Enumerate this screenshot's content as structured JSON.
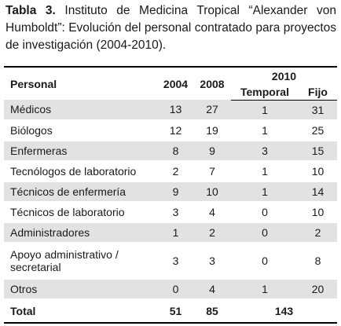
{
  "caption": {
    "label": "Tabla 3.",
    "text": "Instituto de Medicina Tropical “Alexander von Humboldt”: Evolución del personal contratado para proyectos de investigación (2004-2010)."
  },
  "table": {
    "header": {
      "personal": "Personal",
      "y2004": "2004",
      "y2008": "2008",
      "y2010": "2010",
      "temporal": "Temporal",
      "fijo": "Fijo"
    },
    "rows": [
      [
        "Médicos",
        13,
        27,
        1,
        31
      ],
      [
        "Biólogos",
        12,
        19,
        1,
        25
      ],
      [
        "Enfermeras",
        8,
        9,
        3,
        15
      ],
      [
        "Tecnólogos de laboratorio",
        2,
        7,
        1,
        10
      ],
      [
        "Técnicos de enfermería",
        9,
        10,
        1,
        14
      ],
      [
        "Técnicos de laboratorio",
        3,
        4,
        0,
        10
      ],
      [
        "Administradores",
        1,
        2,
        0,
        2
      ],
      [
        "Apoyo administrativo / secretarial",
        3,
        3,
        0,
        8
      ],
      [
        "Otros",
        0,
        4,
        1,
        20
      ]
    ],
    "total": {
      "label": "Total",
      "y2004": 51,
      "y2008": 85,
      "y2010": 143
    }
  }
}
